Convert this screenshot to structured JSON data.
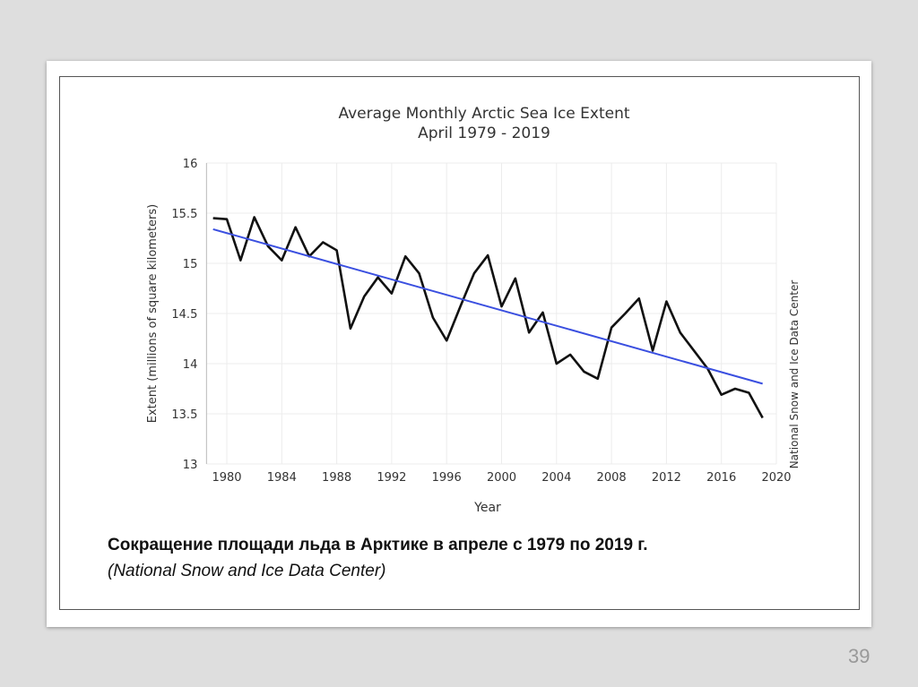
{
  "chart_data": {
    "type": "line",
    "title": "Average Monthly Arctic Sea Ice Extent",
    "subtitle": "April 1979 - 2019",
    "xlabel": "Year",
    "ylabel": "Extent (millions of square kilometers)",
    "side_note": "National Snow and Ice Data Center",
    "xlim": [
      1978,
      2020
    ],
    "ylim": [
      13,
      16
    ],
    "xticks": [
      1980,
      1984,
      1988,
      1992,
      1996,
      2000,
      2004,
      2008,
      2012,
      2016,
      2020
    ],
    "yticks": [
      13,
      13.5,
      14,
      14.5,
      15,
      15.5,
      16
    ],
    "grid": true,
    "series": [
      {
        "name": "Extent",
        "color": "#111111",
        "x": [
          1979,
          1980,
          1981,
          1982,
          1983,
          1984,
          1985,
          1986,
          1987,
          1988,
          1989,
          1990,
          1991,
          1992,
          1993,
          1994,
          1995,
          1996,
          1997,
          1998,
          1999,
          2000,
          2001,
          2002,
          2003,
          2004,
          2005,
          2006,
          2007,
          2008,
          2009,
          2010,
          2011,
          2012,
          2013,
          2014,
          2015,
          2016,
          2017,
          2018,
          2019
        ],
        "values": [
          15.45,
          15.44,
          15.03,
          15.46,
          15.17,
          15.03,
          15.36,
          15.07,
          15.21,
          15.13,
          14.35,
          14.67,
          14.86,
          14.7,
          15.07,
          14.9,
          14.46,
          14.23,
          14.57,
          14.9,
          15.08,
          14.57,
          14.85,
          14.31,
          14.51,
          14.0,
          14.09,
          13.92,
          13.85,
          14.36,
          14.5,
          14.65,
          14.13,
          14.62,
          14.31,
          14.13,
          13.95,
          13.69,
          13.75,
          13.71,
          13.46
        ]
      },
      {
        "name": "Trend",
        "color": "#3a4fe0",
        "x": [
          1979,
          2019
        ],
        "values": [
          15.34,
          13.8
        ]
      }
    ]
  },
  "caption": {
    "line1": "Сокращение площади льда в Арктике в апреле с 1979 по 2019 г.",
    "line2": "(National Snow and Ice Data Center)"
  },
  "page_number": "39"
}
